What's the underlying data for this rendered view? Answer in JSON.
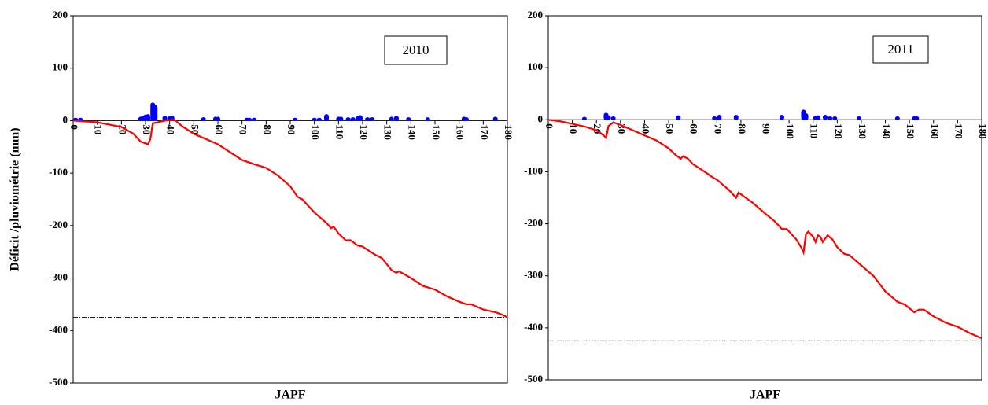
{
  "chart_data": [
    {
      "type": "line",
      "annotation": "2010",
      "xlabel": "JAPF",
      "ylabel": "Déficit /pluviométrie  (mm)",
      "xlim": [
        0,
        180
      ],
      "ylim": [
        -500,
        200
      ],
      "xticks": [
        0,
        10,
        20,
        30,
        40,
        50,
        60,
        70,
        80,
        90,
        100,
        110,
        120,
        130,
        140,
        150,
        160,
        170,
        180
      ],
      "yticks": [
        -500,
        -400,
        -300,
        -200,
        -100,
        0,
        100,
        200
      ],
      "hline": -375,
      "series": [
        {
          "type": "bar",
          "color": "#0000ff",
          "x": [
            1,
            3,
            28,
            29,
            30,
            31,
            33,
            34,
            38,
            40,
            41,
            54,
            59,
            60,
            72,
            73,
            75,
            92,
            100,
            102,
            105,
            110,
            111,
            114,
            116,
            118,
            119,
            122,
            124,
            132,
            134,
            139,
            147,
            162,
            163,
            175
          ],
          "values": [
            1,
            1,
            3,
            5,
            7,
            8,
            30,
            25,
            5,
            4,
            5,
            2,
            3,
            3,
            1,
            1,
            1,
            1,
            1,
            1,
            8,
            3,
            3,
            2,
            2,
            4,
            6,
            2,
            2,
            3,
            5,
            2,
            2,
            3,
            2,
            3
          ]
        },
        {
          "type": "line",
          "color": "#ff0000",
          "x": [
            0,
            10,
            20,
            25,
            28,
            31,
            32,
            33,
            38,
            42,
            45,
            50,
            55,
            60,
            65,
            70,
            75,
            80,
            85,
            90,
            93,
            95,
            100,
            105,
            107,
            108,
            110,
            113,
            115,
            118,
            120,
            125,
            128,
            132,
            134,
            135,
            137,
            140,
            145,
            150,
            155,
            160,
            163,
            165,
            170,
            175,
            178,
            180
          ],
          "values": [
            0,
            -3,
            -12,
            -25,
            -40,
            -45,
            -35,
            -5,
            0,
            2,
            -10,
            -25,
            -35,
            -45,
            -60,
            -75,
            -83,
            -90,
            -105,
            -125,
            -145,
            -150,
            -175,
            -195,
            -205,
            -202,
            -215,
            -228,
            -228,
            -238,
            -240,
            -255,
            -262,
            -285,
            -290,
            -287,
            -292,
            -300,
            -315,
            -322,
            -335,
            -345,
            -350,
            -350,
            -360,
            -365,
            -370,
            -375
          ]
        }
      ]
    },
    {
      "type": "line",
      "annotation": "2011",
      "xlabel": "JAPF",
      "xlim": [
        0,
        180
      ],
      "ylim": [
        -500,
        200
      ],
      "xticks": [
        0,
        10,
        20,
        30,
        40,
        50,
        60,
        70,
        80,
        90,
        100,
        110,
        120,
        130,
        140,
        150,
        160,
        170,
        180
      ],
      "yticks": [
        -500,
        -400,
        -300,
        -200,
        -100,
        0,
        100,
        200
      ],
      "hline": -425,
      "series": [
        {
          "type": "bar",
          "color": "#0000ff",
          "x": [
            15,
            24,
            25,
            27,
            54,
            69,
            71,
            78,
            97,
            106,
            107,
            111,
            112,
            115,
            117,
            119,
            129,
            145,
            152,
            153
          ],
          "values": [
            1,
            9,
            4,
            2,
            4,
            2,
            5,
            5,
            5,
            15,
            8,
            3,
            4,
            5,
            2,
            2,
            2,
            2,
            2,
            2
          ]
        },
        {
          "type": "line",
          "color": "#ff0000",
          "x": [
            0,
            5,
            10,
            15,
            20,
            23,
            24,
            25,
            27,
            30,
            35,
            40,
            45,
            50,
            53,
            55,
            56,
            58,
            60,
            65,
            68,
            70,
            75,
            78,
            79,
            82,
            85,
            90,
            94,
            96,
            97,
            99,
            103,
            105,
            106,
            107,
            108,
            110,
            111,
            112,
            113,
            114,
            116,
            118,
            120,
            123,
            125,
            130,
            135,
            140,
            145,
            148,
            152,
            154,
            156,
            160,
            165,
            170,
            175,
            180
          ],
          "values": [
            0,
            -3,
            -8,
            -13,
            -20,
            -30,
            -35,
            -12,
            -5,
            -10,
            -20,
            -30,
            -40,
            -55,
            -68,
            -75,
            -70,
            -75,
            -85,
            -100,
            -110,
            -115,
            -135,
            -150,
            -140,
            -150,
            -160,
            -180,
            -195,
            -205,
            -210,
            -210,
            -230,
            -245,
            -255,
            -220,
            -215,
            -225,
            -235,
            -222,
            -225,
            -235,
            -222,
            -230,
            -245,
            -258,
            -260,
            -280,
            -300,
            -330,
            -350,
            -355,
            -370,
            -365,
            -365,
            -378,
            -390,
            -398,
            -410,
            -420
          ]
        }
      ]
    }
  ]
}
